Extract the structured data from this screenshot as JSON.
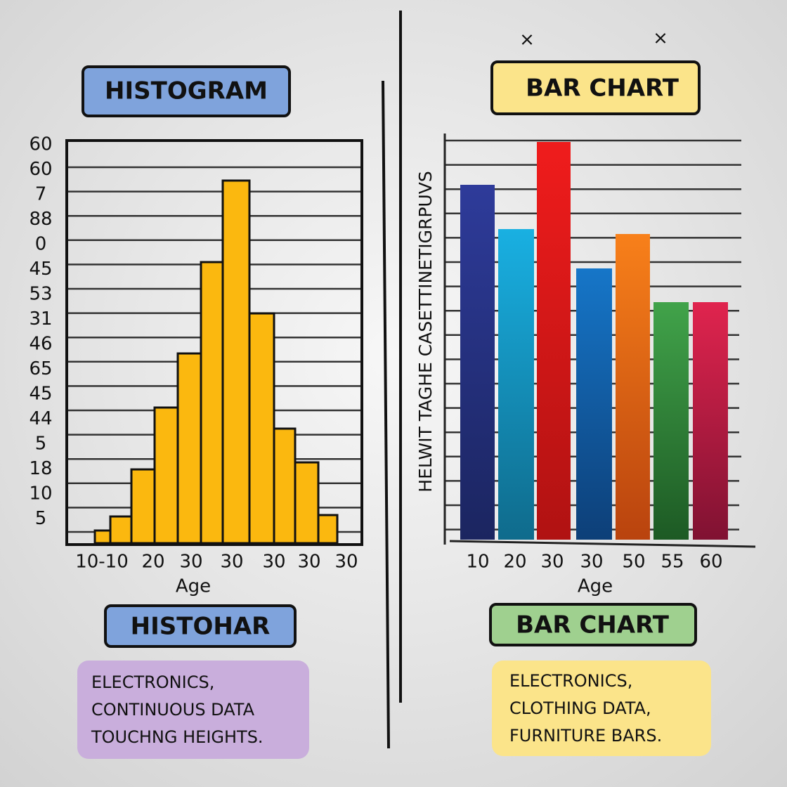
{
  "left": {
    "title": "HISTOGRAM",
    "y_labels": [
      "60",
      "60",
      "7",
      "88",
      "0",
      "45",
      "53",
      "31",
      "46",
      "65",
      "45",
      "44",
      "5",
      "18",
      "10",
      "5"
    ],
    "x_labels": [
      "10-10",
      "20",
      "30",
      "30",
      "30",
      "30",
      "30"
    ],
    "x_axis_label": "Age",
    "caption_title": "HISTOHAR",
    "caption_lines": [
      "ELECTRONICS,",
      "CONTINUOUS DATA",
      "TOUCHNG HEIGHTS."
    ]
  },
  "right": {
    "marks": [
      "×",
      "×"
    ],
    "title": "BAR CHART",
    "y_axis_label": "HELWIT TAGHE CASETTINETIGRPUVS",
    "x_labels": [
      "10",
      "20",
      "30",
      "30",
      "50",
      "55",
      "60"
    ],
    "x_axis_label": "Age",
    "caption_title": "BAR CHART",
    "caption_lines": [
      "ELECTRONICS,",
      "CLOTHING DATA,",
      "FURNITURE BARS."
    ]
  }
}
